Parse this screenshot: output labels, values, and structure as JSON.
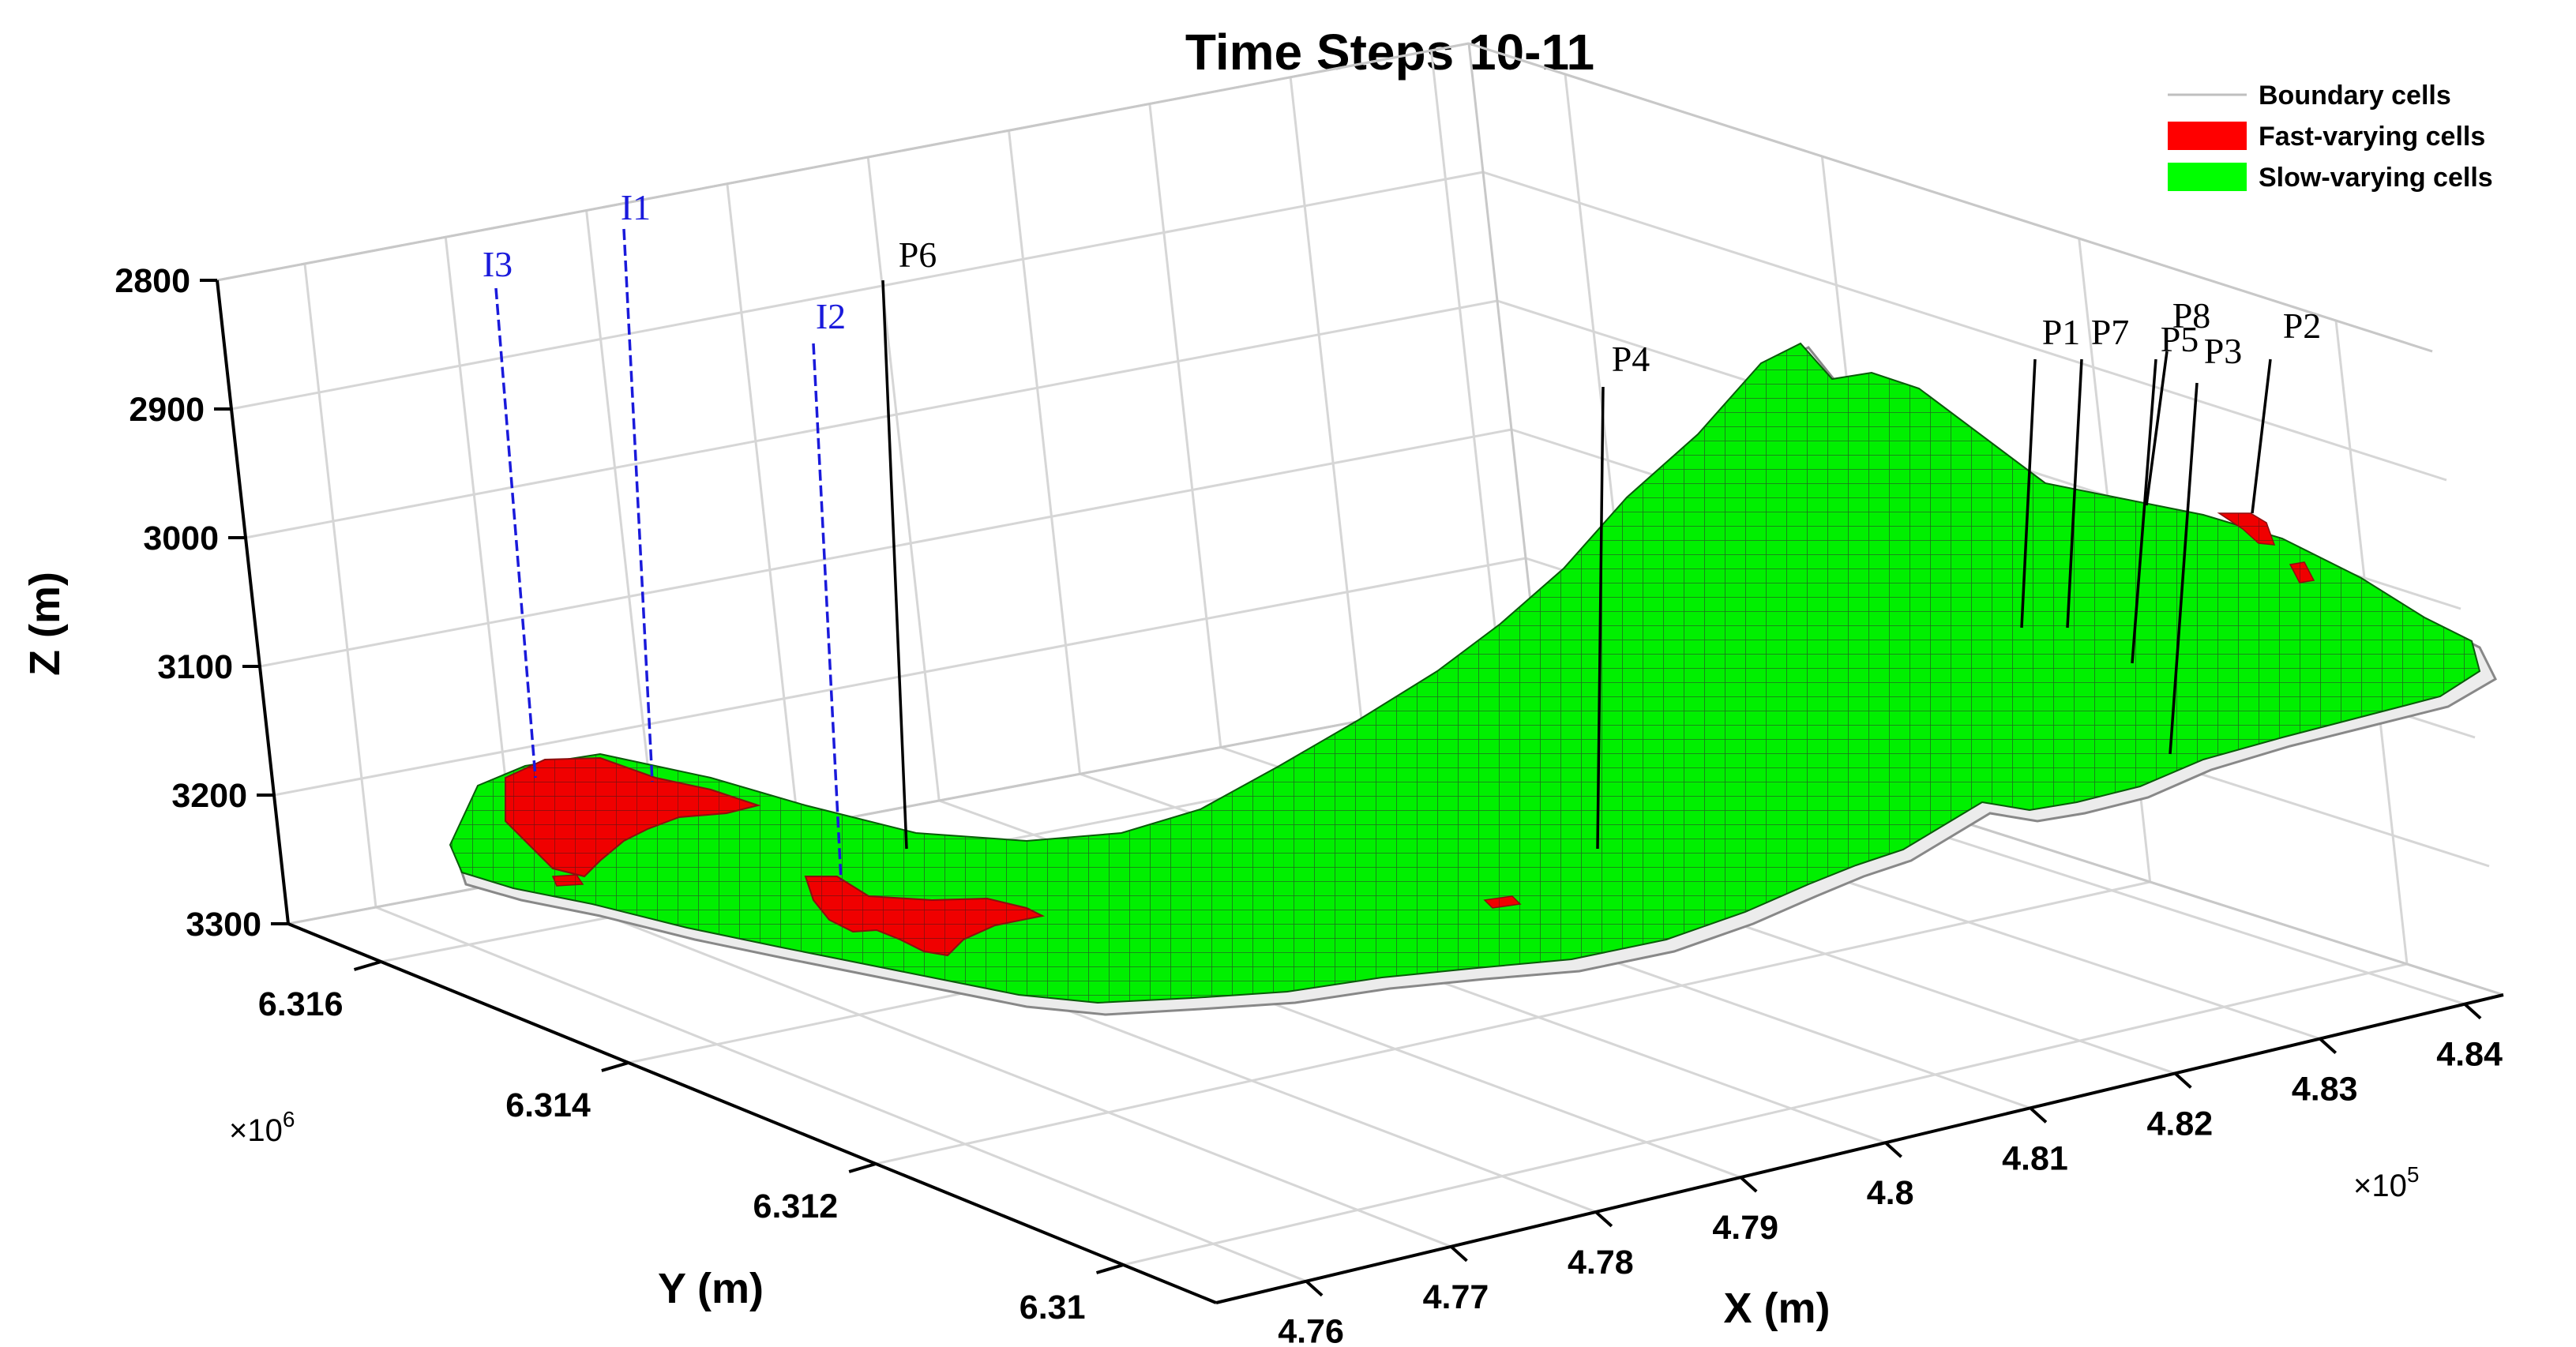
{
  "chart_data": {
    "type": "surface3d",
    "title": "Time Steps 10-11",
    "xlabel": "X (m)",
    "ylabel": "Y (m)",
    "zlabel": "Z (m)",
    "x_multiplier": "×10",
    "x_multiplier_exp": "5",
    "y_multiplier": "×10",
    "y_multiplier_exp": "6",
    "x_ticks": [
      "4.76",
      "4.77",
      "4.78",
      "4.79",
      "4.8",
      "4.81",
      "4.82",
      "4.83",
      "4.84"
    ],
    "y_ticks": [
      "6.31",
      "6.312",
      "6.314",
      "6.316"
    ],
    "z_ticks": [
      "2800",
      "2900",
      "3000",
      "3100",
      "3200",
      "3300"
    ],
    "z_reversed": true,
    "grid": true,
    "legend_position": "top-right",
    "legend": [
      {
        "label": "Boundary cells",
        "color": "#bfbfbf",
        "style": "line"
      },
      {
        "label": "Fast-varying cells",
        "color": "#ff0000",
        "style": "patch"
      },
      {
        "label": "Slow-varying cells",
        "color": "#00ff00",
        "style": "patch"
      }
    ],
    "wells": [
      {
        "name": "I3",
        "kind": "injector",
        "color": "#1a1adb"
      },
      {
        "name": "I1",
        "kind": "injector",
        "color": "#1a1adb"
      },
      {
        "name": "I2",
        "kind": "injector",
        "color": "#1a1adb"
      },
      {
        "name": "P6",
        "kind": "producer",
        "color": "#000000"
      },
      {
        "name": "P4",
        "kind": "producer",
        "color": "#000000"
      },
      {
        "name": "P1",
        "kind": "producer",
        "color": "#000000"
      },
      {
        "name": "P7",
        "kind": "producer",
        "color": "#000000"
      },
      {
        "name": "P5",
        "kind": "producer",
        "color": "#000000"
      },
      {
        "name": "P8",
        "kind": "producer",
        "color": "#000000"
      },
      {
        "name": "P3",
        "kind": "producer",
        "color": "#000000"
      },
      {
        "name": "P2",
        "kind": "producer",
        "color": "#000000"
      }
    ]
  }
}
